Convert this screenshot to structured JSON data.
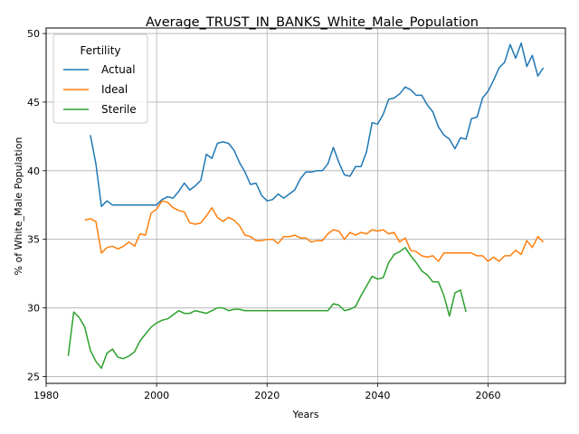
{
  "chart_data": {
    "type": "line",
    "title": "Average_TRUST_IN_BANKS_White_Male_Population",
    "xlabel": "Years",
    "ylabel": "% of White_Male Population",
    "xlim": [
      1980,
      2074
    ],
    "ylim": [
      24.5,
      50.4
    ],
    "xticks": [
      1980,
      2000,
      2020,
      2040,
      2060
    ],
    "yticks": [
      25,
      30,
      35,
      40,
      45,
      50
    ],
    "grid": true,
    "legend": {
      "title": "Fertility",
      "position": "upper-left"
    },
    "series": [
      {
        "name": "Actual",
        "color": "#1f77b4",
        "x": [
          1988,
          1989,
          1990,
          1991,
          1992,
          1993,
          1994,
          1995,
          1996,
          1997,
          1998,
          1999,
          2000,
          2001,
          2002,
          2003,
          2004,
          2005,
          2006,
          2007,
          2008,
          2009,
          2010,
          2011,
          2012,
          2013,
          2014,
          2015,
          2016,
          2017,
          2018,
          2019,
          2020,
          2021,
          2022,
          2023,
          2024,
          2025,
          2026,
          2027,
          2028,
          2029,
          2030,
          2031,
          2032,
          2033,
          2034,
          2035,
          2036,
          2037,
          2038,
          2039,
          2040,
          2041,
          2042,
          2043,
          2044,
          2045,
          2046,
          2047,
          2048,
          2049,
          2050,
          2051,
          2052,
          2053,
          2054,
          2055,
          2056,
          2057,
          2058,
          2059,
          2060,
          2061,
          2062,
          2063,
          2064,
          2065,
          2066,
          2067,
          2068,
          2069,
          2070
        ],
        "y": [
          42.6,
          40.5,
          37.4,
          37.8,
          37.5,
          37.5,
          37.5,
          37.5,
          37.5,
          37.5,
          37.5,
          37.5,
          37.5,
          37.9,
          38.1,
          38.0,
          38.5,
          39.1,
          38.6,
          38.9,
          39.3,
          41.2,
          40.9,
          42.0,
          42.1,
          42.0,
          41.5,
          40.6,
          39.9,
          39.0,
          39.1,
          38.2,
          37.8,
          37.9,
          38.3,
          38.0,
          38.3,
          38.6,
          39.4,
          39.9,
          39.9,
          40.0,
          40.0,
          40.5,
          41.7,
          40.6,
          39.7,
          39.6,
          40.3,
          40.3,
          41.4,
          43.5,
          43.4,
          44.1,
          45.2,
          45.3,
          45.6,
          46.1,
          45.9,
          45.5,
          45.5,
          44.8,
          44.3,
          43.2,
          42.6,
          42.3,
          41.6,
          42.4,
          42.3,
          43.8,
          43.9,
          45.3,
          45.8,
          46.6,
          47.5,
          47.9,
          49.2,
          48.2,
          49.3,
          47.6,
          48.4,
          46.9,
          47.5
        ]
      },
      {
        "name": "Ideal",
        "color": "#ff7f0e",
        "x": [
          1987,
          1988,
          1989,
          1990,
          1991,
          1992,
          1993,
          1994,
          1995,
          1996,
          1997,
          1998,
          1999,
          2000,
          2001,
          2002,
          2003,
          2004,
          2005,
          2006,
          2007,
          2008,
          2009,
          2010,
          2011,
          2012,
          2013,
          2014,
          2015,
          2016,
          2017,
          2018,
          2019,
          2020,
          2021,
          2022,
          2023,
          2024,
          2025,
          2026,
          2027,
          2028,
          2029,
          2030,
          2031,
          2032,
          2033,
          2034,
          2035,
          2036,
          2037,
          2038,
          2039,
          2040,
          2041,
          2042,
          2043,
          2044,
          2045,
          2046,
          2047,
          2048,
          2049,
          2050,
          2051,
          2052,
          2053,
          2054,
          2055,
          2056,
          2057,
          2058,
          2059,
          2060,
          2061,
          2062,
          2063,
          2064,
          2065,
          2066,
          2067,
          2068,
          2069,
          2070
        ],
        "y": [
          36.4,
          36.5,
          36.3,
          34.0,
          34.4,
          34.5,
          34.3,
          34.5,
          34.8,
          34.5,
          35.4,
          35.3,
          36.9,
          37.2,
          37.8,
          37.7,
          37.3,
          37.1,
          37.0,
          36.2,
          36.1,
          36.2,
          36.7,
          37.3,
          36.6,
          36.3,
          36.6,
          36.4,
          36.0,
          35.3,
          35.2,
          34.9,
          34.9,
          35.0,
          35.0,
          34.7,
          35.2,
          35.2,
          35.3,
          35.1,
          35.1,
          34.8,
          34.9,
          34.9,
          35.4,
          35.7,
          35.6,
          35.0,
          35.5,
          35.3,
          35.5,
          35.4,
          35.7,
          35.6,
          35.7,
          35.4,
          35.5,
          34.8,
          35.1,
          34.2,
          34.1,
          33.8,
          33.7,
          33.8,
          33.4,
          34.0,
          34.0,
          34.0,
          34.0,
          34.0,
          34.0,
          33.8,
          33.8,
          33.4,
          33.7,
          33.4,
          33.8,
          33.8,
          34.2,
          33.9,
          34.9,
          34.4,
          35.2,
          34.8
        ]
      },
      {
        "name": "Sterile",
        "color": "#2ca02c",
        "x": [
          1984,
          1985,
          1986,
          1987,
          1988,
          1989,
          1990,
          1991,
          1992,
          1993,
          1994,
          1995,
          1996,
          1997,
          1998,
          1999,
          2000,
          2001,
          2002,
          2003,
          2004,
          2005,
          2006,
          2007,
          2008,
          2009,
          2010,
          2011,
          2012,
          2013,
          2014,
          2015,
          2016,
          2017,
          2018,
          2019,
          2020,
          2021,
          2022,
          2023,
          2024,
          2025,
          2026,
          2027,
          2028,
          2029,
          2030,
          2031,
          2032,
          2033,
          2034,
          2035,
          2036,
          2037,
          2038,
          2039,
          2040,
          2041,
          2042,
          2043,
          2044,
          2045,
          2046,
          2047,
          2048,
          2049,
          2050,
          2051,
          2052,
          2053,
          2054,
          2055,
          2056
        ],
        "y": [
          26.5,
          29.7,
          29.3,
          28.6,
          26.9,
          26.1,
          25.6,
          26.7,
          27.0,
          26.4,
          26.3,
          26.5,
          26.8,
          27.6,
          28.1,
          28.6,
          28.9,
          29.1,
          29.2,
          29.5,
          29.8,
          29.6,
          29.6,
          29.8,
          29.7,
          29.6,
          29.8,
          30.0,
          30.0,
          29.8,
          29.9,
          29.9,
          29.8,
          29.8,
          29.8,
          29.8,
          29.8,
          29.8,
          29.8,
          29.8,
          29.8,
          29.8,
          29.8,
          29.8,
          29.8,
          29.8,
          29.8,
          29.8,
          30.3,
          30.2,
          29.8,
          29.9,
          30.1,
          30.9,
          31.6,
          32.3,
          32.1,
          32.2,
          33.3,
          33.9,
          34.1,
          34.4,
          33.8,
          33.3,
          32.7,
          32.4,
          31.9,
          31.9,
          30.9,
          29.4,
          31.1,
          31.3,
          29.7
        ]
      }
    ]
  }
}
